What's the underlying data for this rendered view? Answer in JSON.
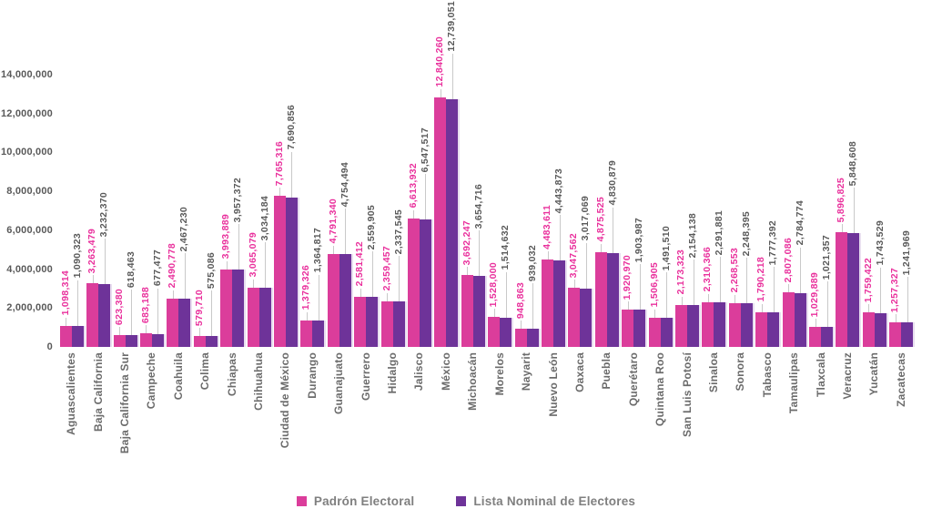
{
  "chart_data": {
    "type": "bar",
    "title": "",
    "xlabel": "",
    "ylabel": "",
    "ylim": [
      0,
      14000000
    ],
    "y_ticks": [
      0,
      2000000,
      4000000,
      6000000,
      8000000,
      10000000,
      12000000,
      14000000
    ],
    "grid": false,
    "legend_position": "bottom",
    "categories": [
      "Aguascalientes",
      "Baja California",
      "Baja California Sur",
      "Campeche",
      "Coahuila",
      "Colima",
      "Chiapas",
      "Chihuahua",
      "Ciudad de México",
      "Durango",
      "Guanajuato",
      "Guerrero",
      "Hidalgo",
      "Jalisco",
      "México",
      "Michoacán",
      "Morelos",
      "Nayarit",
      "Nuevo León",
      "Oaxaca",
      "Puebla",
      "Querétaro",
      "Quintana Roo",
      "San Luis Potosí",
      "Sinaloa",
      "Sonora",
      "Tabasco",
      "Tamaulipas",
      "Tlaxcala",
      "Veracruz",
      "Yucatán",
      "Zacatecas"
    ],
    "series": [
      {
        "name": "Padrón Electoral",
        "color": "#DB3D9B",
        "label_color": "#E9309C",
        "values": [
          1098314,
          3263479,
          623380,
          683188,
          2490778,
          579710,
          3993889,
          3065079,
          7765316,
          1379326,
          4791340,
          2581412,
          2359457,
          6613932,
          12840260,
          3692247,
          1528000,
          948863,
          4483611,
          3047562,
          4875525,
          1920970,
          1506905,
          2173323,
          2310366,
          2268553,
          1790218,
          2807086,
          1029889,
          5896825,
          1759422,
          1257327
        ]
      },
      {
        "name": "Lista Nominal de Electores",
        "color": "#6E3399",
        "label_color": "#595959",
        "values": [
          1090323,
          3232370,
          618463,
          677477,
          2467230,
          575086,
          3957372,
          3034184,
          7690856,
          1364817,
          4754494,
          2559905,
          2337545,
          6547517,
          12739051,
          3654716,
          1514632,
          939032,
          4443873,
          3017069,
          4830879,
          1903987,
          1491510,
          2154138,
          2291881,
          2248395,
          1777392,
          2784774,
          1021357,
          5848608,
          1743529,
          1241969
        ]
      }
    ]
  },
  "style": {
    "leader_color": "#c9c9c9",
    "axis_text_color": "#595959",
    "category_text_color": "#6b6b6b",
    "legend_text_color": "#7f7f7f"
  }
}
